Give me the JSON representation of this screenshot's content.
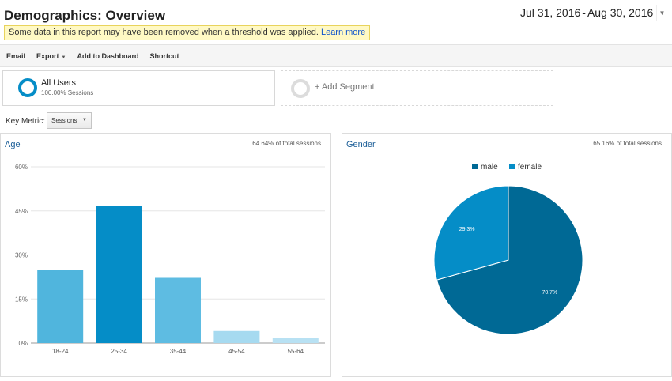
{
  "page": {
    "title": "Demographics: Overview",
    "threshold_notice": "Some data in this report may have been removed when a threshold was applied.",
    "threshold_link": "Learn more"
  },
  "date_range": {
    "start": "Jul 31, 2016",
    "separator": "-",
    "end": "Aug 30, 2016"
  },
  "toolbar": {
    "email": "Email",
    "export": "Export",
    "add_to_dashboard": "Add to Dashboard",
    "shortcut": "Shortcut"
  },
  "segments": {
    "all_users": {
      "name": "All Users",
      "sessions": "100.00% Sessions"
    },
    "add_segment": "+ Add Segment"
  },
  "key_metric": {
    "label": "Key Metric:",
    "value": "Sessions"
  },
  "colors": {
    "accent": "#058dc7",
    "link": "#1a5d97",
    "notice_bg": "#fff9c4"
  },
  "age_panel": {
    "title": "Age",
    "total": "64.64% of total sessions"
  },
  "gender_panel": {
    "title": "Gender",
    "total": "65.16% of total sessions"
  },
  "chart_data": [
    {
      "type": "bar",
      "title": "Age",
      "categories": [
        "18-24",
        "25-34",
        "35-44",
        "45-54",
        "55-64"
      ],
      "values": [
        24.9,
        46.8,
        22.2,
        4.1,
        1.8
      ],
      "bar_colors": [
        "#50b5dd",
        "#058dc7",
        "#5ebce2",
        "#a6daf0",
        "#b8e1f3"
      ],
      "yticks": [
        "0%",
        "15%",
        "30%",
        "45%",
        "60%"
      ],
      "ylim": [
        0,
        60
      ],
      "grid": true
    },
    {
      "type": "pie",
      "title": "Gender",
      "labels": [
        "male",
        "female"
      ],
      "values": [
        70.7,
        29.3
      ],
      "value_labels": [
        "70.7%",
        "29.3%"
      ],
      "colors": [
        "#006995",
        "#058dc7"
      ],
      "legend": "top"
    }
  ]
}
